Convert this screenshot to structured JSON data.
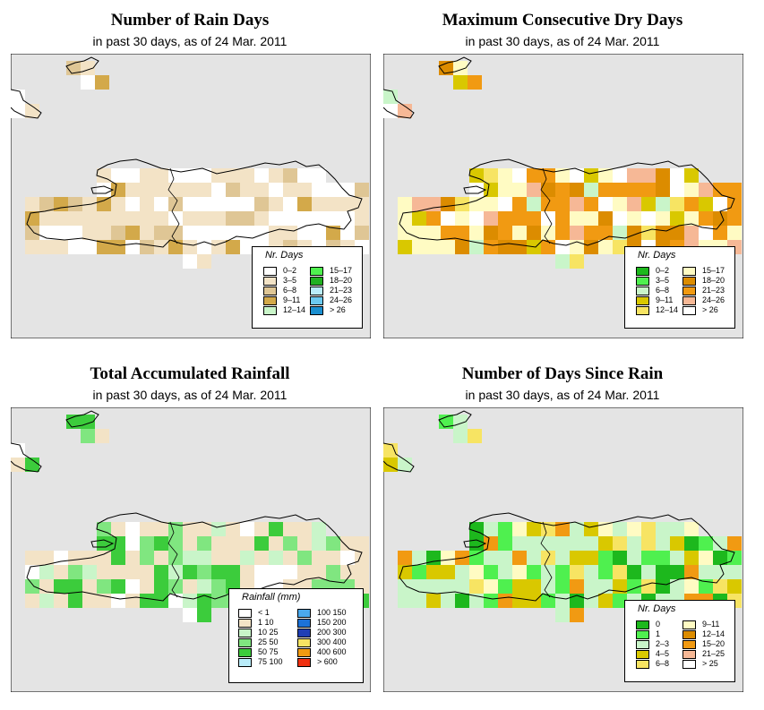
{
  "colors": {
    "map_bg": "#e4e4e4",
    "ocean_border": "#000000"
  },
  "panels": [
    {
      "title": "Number of Rain Days",
      "subtitle": "in past 30 days, as of  24 Mar. 2011",
      "legend_title": "Nr. Days",
      "legend": {
        "col1": [
          {
            "label": "0–2",
            "color": "#ffffff"
          },
          {
            "label": "3–5",
            "color": "#f3e3c6"
          },
          {
            "label": "6–8",
            "color": "#dfc695"
          },
          {
            "label": "9–11",
            "color": "#d3a94a"
          },
          {
            "label": "12–14",
            "color": "#c9f5c9"
          }
        ],
        "col2": [
          {
            "label": "15–17",
            "color": "#4ff04f"
          },
          {
            "label": "18–20",
            "color": "#21b021"
          },
          {
            "label": "21–23",
            "color": "#b9ecf9"
          },
          {
            "label": "24–26",
            "color": "#6bc9f0"
          },
          {
            "label": "> 26",
            "color": "#1a8fd0"
          }
        ]
      }
    },
    {
      "title": "Maximum Consecutive Dry Days",
      "subtitle": "in past 30 days, as of  24 Mar. 2011",
      "legend_title": "Nr. Days",
      "legend": {
        "col1": [
          {
            "label": "0–2",
            "color": "#1db81d"
          },
          {
            "label": "3–5",
            "color": "#4ff04f"
          },
          {
            "label": "6–8",
            "color": "#c9f5c9"
          },
          {
            "label": "9–11",
            "color": "#d9c800"
          },
          {
            "label": "12–14",
            "color": "#f7e463"
          }
        ],
        "col2": [
          {
            "label": "15–17",
            "color": "#fffbc3"
          },
          {
            "label": "18–20",
            "color": "#dc8c00"
          },
          {
            "label": "21–23",
            "color": "#f19a12"
          },
          {
            "label": "24–26",
            "color": "#f6b896"
          },
          {
            "label": "> 26",
            "color": "#ffffff"
          }
        ]
      }
    },
    {
      "title": "Total Accumulated Rainfall",
      "subtitle": "in past 30 days, as of  24 Mar. 2011",
      "legend_title": "Rainfall (mm)",
      "legend": {
        "col1": [
          {
            "label": "< 1",
            "color": "#ffffff"
          },
          {
            "label": "1     10",
            "color": "#f3e3c6"
          },
          {
            "label": "10    25",
            "color": "#c9f5c9"
          },
          {
            "label": "25    50",
            "color": "#80e680"
          },
          {
            "label": "50    75",
            "color": "#3ccc3c"
          },
          {
            "label": "75   100",
            "color": "#b9ecf9"
          }
        ],
        "col2": [
          {
            "label": "100  150",
            "color": "#4aa9ee"
          },
          {
            "label": "150  200",
            "color": "#1c72d8"
          },
          {
            "label": "200  300",
            "color": "#1f3fb5"
          },
          {
            "label": "300  400",
            "color": "#f7e463"
          },
          {
            "label": "400  600",
            "color": "#f19a12"
          },
          {
            "label": "> 600",
            "color": "#f03010"
          }
        ]
      }
    },
    {
      "title": "Number of Days Since Rain",
      "subtitle": "in past 30 days, as of  24 Mar. 2011",
      "legend_title": "Nr. Days",
      "legend": {
        "col1": [
          {
            "label": "0",
            "color": "#1db81d"
          },
          {
            "label": "1",
            "color": "#4ff04f"
          },
          {
            "label": "2–3",
            "color": "#c9f5c9"
          },
          {
            "label": "4–5",
            "color": "#d9c800"
          },
          {
            "label": "6–8",
            "color": "#f7e463"
          }
        ],
        "col2": [
          {
            "label": "9–11",
            "color": "#fffbc3"
          },
          {
            "label": "12–14",
            "color": "#dc8c00"
          },
          {
            "label": "15–20",
            "color": "#f19a12"
          },
          {
            "label": "21–25",
            "color": "#f6b896"
          },
          {
            "label": "> 25",
            "color": "#ffffff"
          }
        ]
      }
    }
  ]
}
